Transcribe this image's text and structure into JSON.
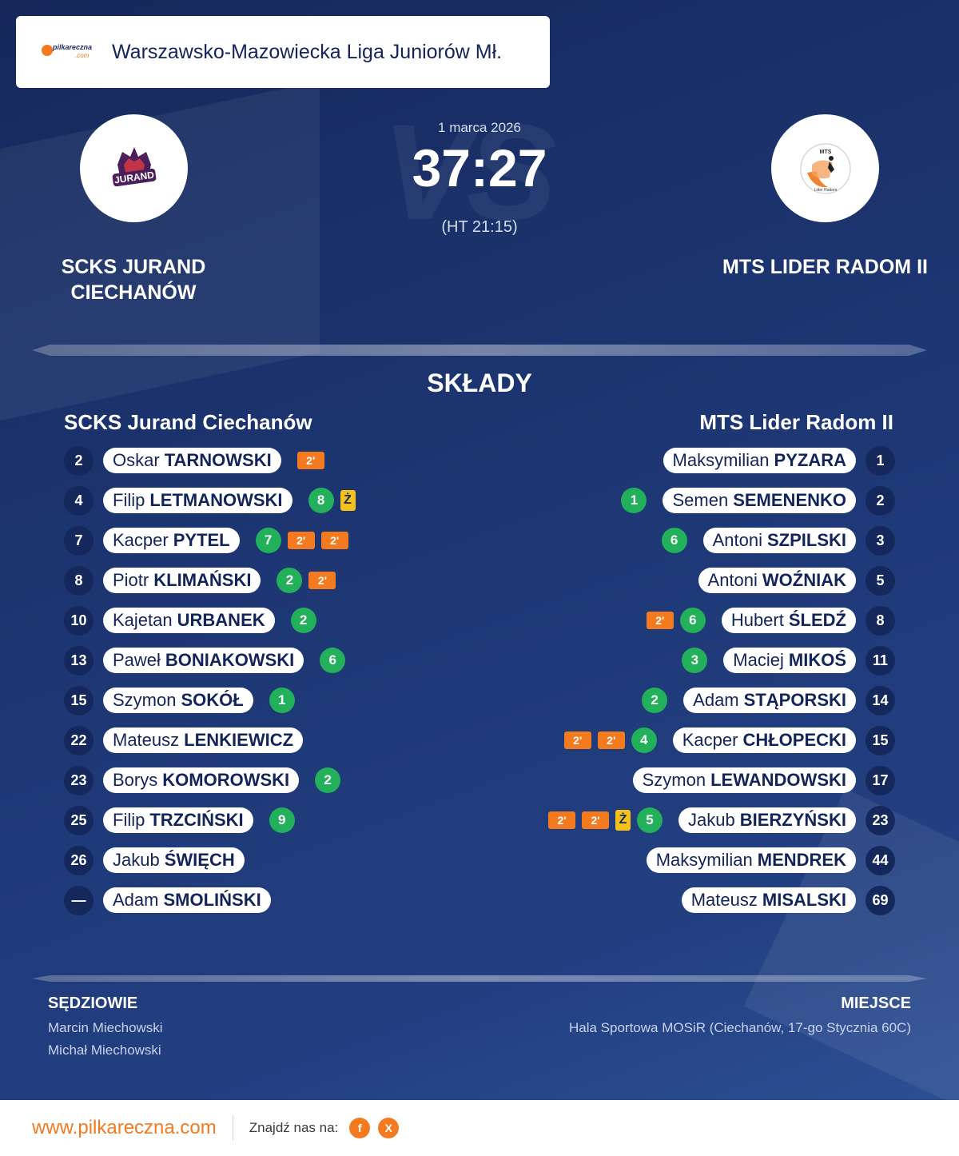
{
  "brand": {
    "logo_text": "pilkareczna",
    "logo_sub": ".com",
    "url": "www.pilkareczna.com",
    "find_us": "Znajdź nas na:",
    "accent_color": "#f47a20",
    "social": [
      {
        "name": "facebook-icon",
        "glyph": "f"
      },
      {
        "name": "x-icon",
        "glyph": "X"
      }
    ]
  },
  "league": "Warszawsko-Mazowiecka Liga Juniorów Mł.",
  "match": {
    "date": "1 marca 2026",
    "score": "37:27",
    "halftime": "(HT 21:15)",
    "vs_text": "VS"
  },
  "home": {
    "name_line1": "SCKS JURAND",
    "name_line2": "CIECHANÓW",
    "crest_text": "JURAND",
    "lineup_title": "SCKS Jurand Ciechanów",
    "players": [
      {
        "number": "2",
        "first": "Oskar",
        "last": "TARNOWSKI",
        "goals": null,
        "yellow": false,
        "suspensions": 1
      },
      {
        "number": "4",
        "first": "Filip",
        "last": "LETMANOWSKI",
        "goals": "8",
        "yellow": true,
        "suspensions": 0
      },
      {
        "number": "7",
        "first": "Kacper",
        "last": "PYTEL",
        "goals": "7",
        "yellow": false,
        "suspensions": 2
      },
      {
        "number": "8",
        "first": "Piotr",
        "last": "KLIMAŃSKI",
        "goals": "2",
        "yellow": false,
        "suspensions": 1
      },
      {
        "number": "10",
        "first": "Kajetan",
        "last": "URBANEK",
        "goals": "2",
        "yellow": false,
        "suspensions": 0
      },
      {
        "number": "13",
        "first": "Paweł",
        "last": "BONIAKOWSKI",
        "goals": "6",
        "yellow": false,
        "suspensions": 0
      },
      {
        "number": "15",
        "first": "Szymon",
        "last": "SOKÓŁ",
        "goals": "1",
        "yellow": false,
        "suspensions": 0
      },
      {
        "number": "22",
        "first": "Mateusz",
        "last": "LENKIEWICZ",
        "goals": null,
        "yellow": false,
        "suspensions": 0
      },
      {
        "number": "23",
        "first": "Borys",
        "last": "KOMOROWSKI",
        "goals": "2",
        "yellow": false,
        "suspensions": 0
      },
      {
        "number": "25",
        "first": "Filip",
        "last": "TRZCIŃSKI",
        "goals": "9",
        "yellow": false,
        "suspensions": 0
      },
      {
        "number": "26",
        "first": "Jakub",
        "last": "ŚWIĘCH",
        "goals": null,
        "yellow": false,
        "suspensions": 0
      },
      {
        "number": "—",
        "first": "Adam",
        "last": "SMOLIŃSKI",
        "goals": null,
        "yellow": false,
        "suspensions": 0
      }
    ]
  },
  "away": {
    "name_line1": "MTS LIDER RADOM II",
    "crest_text": "MTS",
    "crest_sub": "Lider Radom",
    "lineup_title": "MTS Lider Radom II",
    "players": [
      {
        "number": "1",
        "first": "Maksymilian",
        "last": "PYZARA",
        "goals": null,
        "yellow": false,
        "suspensions": 0
      },
      {
        "number": "2",
        "first": "Semen",
        "last": "SEMENENKO",
        "goals": "1",
        "yellow": false,
        "suspensions": 0
      },
      {
        "number": "3",
        "first": "Antoni",
        "last": "SZPILSKI",
        "goals": "6",
        "yellow": false,
        "suspensions": 0
      },
      {
        "number": "5",
        "first": "Antoni",
        "last": "WOŹNIAK",
        "goals": null,
        "yellow": false,
        "suspensions": 0
      },
      {
        "number": "8",
        "first": "Hubert",
        "last": "ŚLEDŹ",
        "goals": "6",
        "yellow": false,
        "suspensions": 1
      },
      {
        "number": "11",
        "first": "Maciej",
        "last": "MIKOŚ",
        "goals": "3",
        "yellow": false,
        "suspensions": 0
      },
      {
        "number": "14",
        "first": "Adam",
        "last": "STĄPORSKI",
        "goals": "2",
        "yellow": false,
        "suspensions": 0
      },
      {
        "number": "15",
        "first": "Kacper",
        "last": "CHŁOPECKI",
        "goals": "4",
        "yellow": false,
        "suspensions": 2
      },
      {
        "number": "17",
        "first": "Szymon",
        "last": "LEWANDOWSKI",
        "goals": null,
        "yellow": false,
        "suspensions": 0
      },
      {
        "number": "23",
        "first": "Jakub",
        "last": "BIERZYŃSKI",
        "goals": "5",
        "yellow": true,
        "suspensions": 2
      },
      {
        "number": "44",
        "first": "Maksymilian",
        "last": "MENDREK",
        "goals": null,
        "yellow": false,
        "suspensions": 0
      },
      {
        "number": "69",
        "first": "Mateusz",
        "last": "MISALSKI",
        "goals": null,
        "yellow": false,
        "suspensions": 0
      }
    ]
  },
  "labels": {
    "lineups": "SKŁADY",
    "suspension": "2'",
    "yellow": "Ż",
    "referees": "SĘDZIOWIE",
    "venue": "MIEJSCE"
  },
  "referees": [
    "Marcin Miechowski",
    "Michał Miechowski"
  ],
  "venue": "Hala Sportowa MOSiR (Ciechanów, 17-go Stycznia 60C)"
}
